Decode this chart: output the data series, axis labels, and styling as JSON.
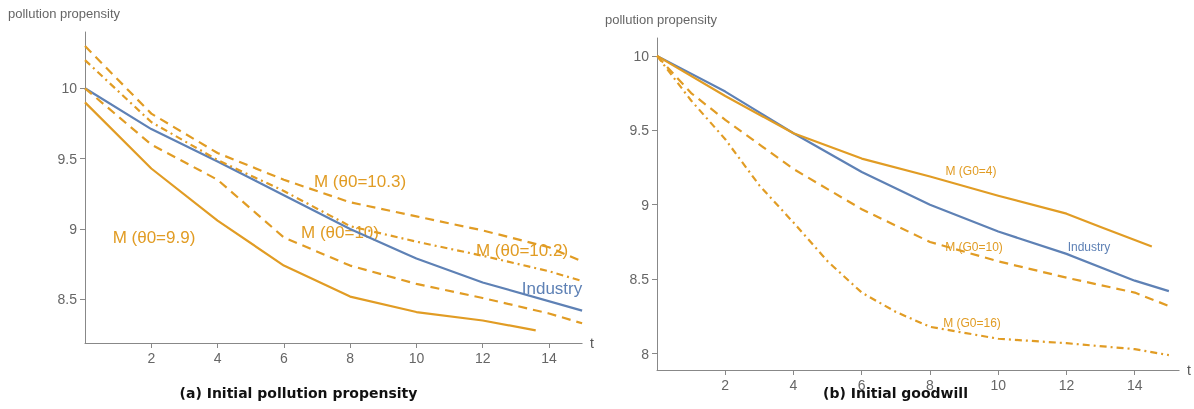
{
  "chart_data": [
    {
      "type": "line",
      "title": "(a) Initial pollution propensity",
      "xlabel": "t",
      "ylabel": "pollution propensity",
      "xlim": [
        0,
        15
      ],
      "ylim": [
        8.19,
        10.4
      ],
      "xticks": [
        2,
        4,
        6,
        8,
        10,
        12,
        14
      ],
      "yticks": [
        8.5,
        9.0,
        9.5,
        10.0
      ],
      "grid": false,
      "series": [
        {
          "name": "Industry",
          "color": "#5e81b5",
          "line_style": "solid",
          "x": [
            0,
            2,
            4,
            6,
            8,
            10,
            12,
            15
          ],
          "values": [
            10.0,
            9.71,
            9.48,
            9.24,
            9.0,
            8.79,
            8.62,
            8.42
          ]
        },
        {
          "name": "M (θ0=10.3)",
          "color": "#e19c24",
          "line_style": "dashed",
          "x": [
            0,
            2,
            4,
            6,
            8,
            10,
            12,
            14,
            15
          ],
          "values": [
            10.3,
            9.82,
            9.54,
            9.35,
            9.19,
            9.09,
            8.99,
            8.87,
            8.77
          ]
        },
        {
          "name": "M (θ0=10.2)",
          "color": "#e19c24",
          "line_style": "dashdot",
          "x": [
            0,
            2,
            4,
            6,
            8,
            10,
            12,
            14,
            15
          ],
          "values": [
            10.2,
            9.76,
            9.49,
            9.27,
            9.02,
            8.91,
            8.81,
            8.7,
            8.63
          ]
        },
        {
          "name": "M (θ0=10)",
          "color": "#e19c24",
          "line_style": "dashed",
          "x": [
            0,
            2,
            4,
            6,
            8,
            10,
            12,
            14,
            15
          ],
          "values": [
            10.0,
            9.6,
            9.35,
            8.94,
            8.74,
            8.61,
            8.51,
            8.4,
            8.33
          ]
        },
        {
          "name": "M (θ0=9.9)",
          "color": "#e19c24",
          "line_style": "solid",
          "x": [
            0,
            2,
            4,
            6,
            8,
            10,
            12,
            13.6
          ],
          "values": [
            9.9,
            9.43,
            9.06,
            8.74,
            8.52,
            8.41,
            8.35,
            8.28
          ]
        }
      ]
    },
    {
      "type": "line",
      "title": "(b) Initial goodwill",
      "xlabel": "t",
      "ylabel": "pollution propensity",
      "xlim": [
        0,
        15.3
      ],
      "ylim": [
        7.89,
        10.12
      ],
      "xticks": [
        2,
        4,
        6,
        8,
        10,
        12,
        14
      ],
      "yticks": [
        8.0,
        8.5,
        9.0,
        9.5,
        10.0
      ],
      "grid": false,
      "series": [
        {
          "name": "Industry",
          "color": "#5e81b5",
          "line_style": "solid",
          "x": [
            0,
            2,
            4,
            6,
            8,
            10,
            12,
            14,
            15
          ],
          "values": [
            10.0,
            9.76,
            9.48,
            9.22,
            9.0,
            8.82,
            8.67,
            8.49,
            8.42
          ]
        },
        {
          "name": "M (G0=4)",
          "color": "#e19c24",
          "line_style": "solid",
          "x": [
            0,
            2,
            4,
            6,
            8,
            10,
            12,
            13,
            14.5
          ],
          "values": [
            10.0,
            9.73,
            9.48,
            9.31,
            9.19,
            9.06,
            8.94,
            8.85,
            8.72
          ]
        },
        {
          "name": "M (G0=10)",
          "color": "#e19c24",
          "line_style": "dashed",
          "x": [
            0,
            1,
            2,
            4,
            6,
            8,
            10,
            12,
            14,
            15
          ],
          "values": [
            10.0,
            9.75,
            9.57,
            9.24,
            8.97,
            8.75,
            8.62,
            8.51,
            8.41,
            8.32
          ]
        },
        {
          "name": "M (G0=16)",
          "color": "#e19c24",
          "line_style": "dashdot",
          "x": [
            0,
            1,
            2,
            3,
            4,
            5,
            6,
            7,
            8,
            10,
            12,
            14,
            15
          ],
          "values": [
            10.0,
            9.7,
            9.44,
            9.13,
            8.88,
            8.62,
            8.41,
            8.28,
            8.18,
            8.1,
            8.07,
            8.03,
            7.99
          ]
        }
      ]
    }
  ]
}
